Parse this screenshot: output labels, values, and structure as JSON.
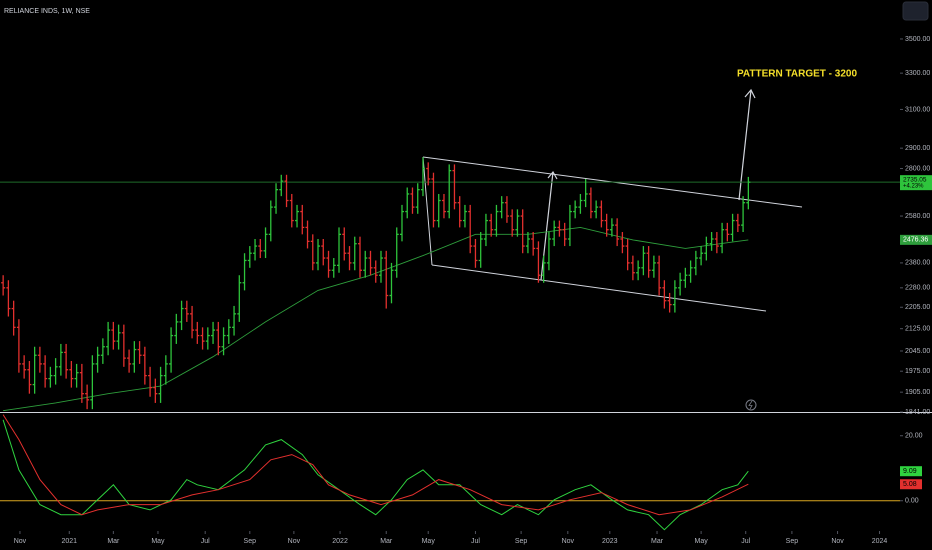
{
  "chart_data": {
    "type": "ohlc",
    "title": "RELIANCE INDS, 1W, NSE",
    "log_scale": true,
    "xlim": [
      -0.6,
      170.9
    ],
    "xticks": [
      {
        "value": 3.2,
        "label": "Nov"
      },
      {
        "value": 12.6,
        "label": "2021"
      },
      {
        "value": 21,
        "label": "Mar"
      },
      {
        "value": 29.5,
        "label": "May"
      },
      {
        "value": 38.5,
        "label": "Jul"
      },
      {
        "value": 47,
        "label": "Sep"
      },
      {
        "value": 55.4,
        "label": "Nov"
      },
      {
        "value": 64.2,
        "label": "2022"
      },
      {
        "value": 73,
        "label": "Mar"
      },
      {
        "value": 81,
        "label": "May"
      },
      {
        "value": 90,
        "label": "Jul"
      },
      {
        "value": 98.7,
        "label": "Sep"
      },
      {
        "value": 107.6,
        "label": "Nov"
      },
      {
        "value": 115.6,
        "label": "2023"
      },
      {
        "value": 124.6,
        "label": "Mar"
      },
      {
        "value": 133,
        "label": "May"
      },
      {
        "value": 141.5,
        "label": "Jul"
      },
      {
        "value": 150.3,
        "label": "Sep"
      },
      {
        "value": 159,
        "label": "Nov"
      },
      {
        "value": 167,
        "label": "2024"
      }
    ],
    "ylim": [
      1841,
      3743
    ],
    "yticks": [
      {
        "value": 3500,
        "label": "3500.00"
      },
      {
        "value": 3300,
        "label": "3300.00"
      },
      {
        "value": 3100,
        "label": "3100.00"
      },
      {
        "value": 2900,
        "label": "2900.00"
      },
      {
        "value": 2800,
        "label": "2800.00"
      },
      {
        "value": 2580,
        "label": "2580.00"
      },
      {
        "value": 2380,
        "label": "2380.00"
      },
      {
        "value": 2280,
        "label": "2280.00"
      },
      {
        "value": 2205,
        "label": "2205.00"
      },
      {
        "value": 2125,
        "label": "2125.00"
      },
      {
        "value": 2045,
        "label": "2045.00"
      },
      {
        "value": 1975,
        "label": "1975.00"
      },
      {
        "value": 1905,
        "label": "1905.00"
      },
      {
        "value": 1841,
        "label": "1841.00"
      }
    ],
    "up_color": "#2ec43c",
    "down_color": "#e3302e",
    "ohlc": [
      [
        2300,
        2330,
        2250,
        2280
      ],
      [
        2280,
        2310,
        2170,
        2200
      ],
      [
        2200,
        2230,
        2100,
        2130
      ],
      [
        2130,
        2160,
        1970,
        2000
      ],
      [
        2000,
        2030,
        1950,
        1980
      ],
      [
        1980,
        2010,
        1900,
        1930
      ],
      [
        1930,
        2060,
        1900,
        2030
      ],
      [
        2030,
        2060,
        1970,
        2000
      ],
      [
        2000,
        2030,
        1920,
        1950
      ],
      [
        1950,
        1990,
        1920,
        1960
      ],
      [
        1960,
        2020,
        1930,
        1990
      ],
      [
        1990,
        2070,
        1960,
        2040
      ],
      [
        2040,
        2070,
        1950,
        1980
      ],
      [
        1980,
        2010,
        1920,
        1950
      ],
      [
        1950,
        2000,
        1920,
        1970
      ],
      [
        1970,
        2000,
        1870,
        1900
      ],
      [
        1900,
        1930,
        1850,
        1880
      ],
      [
        1880,
        2030,
        1850,
        2000
      ],
      [
        2000,
        2060,
        1970,
        2030
      ],
      [
        2030,
        2090,
        2000,
        2060
      ],
      [
        2060,
        2150,
        2030,
        2120
      ],
      [
        2120,
        2150,
        2050,
        2080
      ],
      [
        2080,
        2140,
        2050,
        2110
      ],
      [
        2110,
        2140,
        1990,
        2020
      ],
      [
        2020,
        2050,
        1970,
        2000
      ],
      [
        2000,
        2080,
        1970,
        2050
      ],
      [
        2050,
        2080,
        2000,
        2030
      ],
      [
        2030,
        2060,
        1930,
        1960
      ],
      [
        1960,
        1990,
        1890,
        1920
      ],
      [
        1920,
        1950,
        1870,
        1900
      ],
      [
        1900,
        1990,
        1870,
        1960
      ],
      [
        1960,
        2030,
        1930,
        2000
      ],
      [
        2000,
        2130,
        1970,
        2100
      ],
      [
        2100,
        2180,
        2070,
        2150
      ],
      [
        2150,
        2230,
        2120,
        2200
      ],
      [
        2200,
        2230,
        2150,
        2180
      ],
      [
        2180,
        2210,
        2090,
        2120
      ],
      [
        2120,
        2150,
        2070,
        2100
      ],
      [
        2100,
        2130,
        2050,
        2080
      ],
      [
        2080,
        2130,
        2050,
        2100
      ],
      [
        2100,
        2150,
        2070,
        2120
      ],
      [
        2120,
        2150,
        2030,
        2060
      ],
      [
        2060,
        2130,
        2030,
        2100
      ],
      [
        2100,
        2160,
        2070,
        2130
      ],
      [
        2130,
        2210,
        2100,
        2180
      ],
      [
        2180,
        2330,
        2150,
        2300
      ],
      [
        2300,
        2420,
        2270,
        2390
      ],
      [
        2390,
        2450,
        2360,
        2420
      ],
      [
        2420,
        2480,
        2390,
        2450
      ],
      [
        2450,
        2480,
        2400,
        2430
      ],
      [
        2430,
        2530,
        2400,
        2500
      ],
      [
        2500,
        2650,
        2470,
        2620
      ],
      [
        2620,
        2730,
        2590,
        2700
      ],
      [
        2700,
        2770,
        2670,
        2740
      ],
      [
        2740,
        2770,
        2620,
        2650
      ],
      [
        2650,
        2680,
        2530,
        2560
      ],
      [
        2560,
        2630,
        2530,
        2600
      ],
      [
        2600,
        2630,
        2500,
        2530
      ],
      [
        2530,
        2560,
        2440,
        2470
      ],
      [
        2470,
        2500,
        2350,
        2380
      ],
      [
        2380,
        2480,
        2350,
        2450
      ],
      [
        2450,
        2480,
        2370,
        2400
      ],
      [
        2400,
        2430,
        2320,
        2350
      ],
      [
        2350,
        2400,
        2320,
        2370
      ],
      [
        2370,
        2530,
        2340,
        2500
      ],
      [
        2500,
        2530,
        2390,
        2420
      ],
      [
        2420,
        2450,
        2350,
        2380
      ],
      [
        2380,
        2490,
        2350,
        2460
      ],
      [
        2460,
        2490,
        2320,
        2350
      ],
      [
        2350,
        2430,
        2320,
        2400
      ],
      [
        2400,
        2430,
        2330,
        2360
      ],
      [
        2360,
        2390,
        2300,
        2330
      ],
      [
        2330,
        2430,
        2300,
        2400
      ],
      [
        2400,
        2430,
        2200,
        2250
      ],
      [
        2250,
        2380,
        2220,
        2350
      ],
      [
        2350,
        2530,
        2320,
        2500
      ],
      [
        2500,
        2630,
        2470,
        2600
      ],
      [
        2600,
        2710,
        2570,
        2680
      ],
      [
        2680,
        2710,
        2590,
        2620
      ],
      [
        2620,
        2730,
        2590,
        2700
      ],
      [
        2700,
        2855,
        2670,
        2800
      ],
      [
        2800,
        2830,
        2720,
        2750
      ],
      [
        2750,
        2780,
        2530,
        2560
      ],
      [
        2560,
        2680,
        2530,
        2650
      ],
      [
        2650,
        2680,
        2570,
        2600
      ],
      [
        2600,
        2820,
        2570,
        2790
      ],
      [
        2790,
        2820,
        2610,
        2640
      ],
      [
        2640,
        2670,
        2530,
        2560
      ],
      [
        2560,
        2630,
        2530,
        2600
      ],
      [
        2600,
        2630,
        2420,
        2450
      ],
      [
        2450,
        2480,
        2360,
        2390
      ],
      [
        2390,
        2510,
        2360,
        2480
      ],
      [
        2480,
        2590,
        2450,
        2560
      ],
      [
        2560,
        2590,
        2490,
        2520
      ],
      [
        2520,
        2630,
        2490,
        2600
      ],
      [
        2600,
        2670,
        2570,
        2640
      ],
      [
        2640,
        2670,
        2550,
        2580
      ],
      [
        2580,
        2610,
        2490,
        2520
      ],
      [
        2520,
        2610,
        2490,
        2580
      ],
      [
        2580,
        2610,
        2420,
        2450
      ],
      [
        2450,
        2510,
        2420,
        2480
      ],
      [
        2480,
        2510,
        2410,
        2440
      ],
      [
        2440,
        2470,
        2300,
        2330
      ],
      [
        2330,
        2410,
        2300,
        2380
      ],
      [
        2380,
        2510,
        2350,
        2480
      ],
      [
        2480,
        2560,
        2450,
        2530
      ],
      [
        2530,
        2560,
        2490,
        2520
      ],
      [
        2520,
        2550,
        2450,
        2480
      ],
      [
        2480,
        2630,
        2450,
        2600
      ],
      [
        2600,
        2650,
        2570,
        2620
      ],
      [
        2620,
        2680,
        2590,
        2650
      ],
      [
        2650,
        2750,
        2620,
        2680
      ],
      [
        2680,
        2710,
        2570,
        2600
      ],
      [
        2600,
        2650,
        2570,
        2620
      ],
      [
        2620,
        2650,
        2530,
        2560
      ],
      [
        2560,
        2590,
        2490,
        2520
      ],
      [
        2520,
        2570,
        2490,
        2540
      ],
      [
        2540,
        2570,
        2450,
        2480
      ],
      [
        2480,
        2510,
        2420,
        2450
      ],
      [
        2450,
        2480,
        2350,
        2380
      ],
      [
        2380,
        2410,
        2310,
        2340
      ],
      [
        2340,
        2390,
        2310,
        2360
      ],
      [
        2360,
        2450,
        2330,
        2420
      ],
      [
        2420,
        2450,
        2320,
        2350
      ],
      [
        2350,
        2410,
        2320,
        2380
      ],
      [
        2380,
        2410,
        2250,
        2280
      ],
      [
        2280,
        2310,
        2200,
        2230
      ],
      [
        2230,
        2260,
        2185,
        2215
      ],
      [
        2215,
        2310,
        2185,
        2280
      ],
      [
        2280,
        2340,
        2250,
        2310
      ],
      [
        2310,
        2360,
        2280,
        2330
      ],
      [
        2330,
        2390,
        2300,
        2360
      ],
      [
        2360,
        2430,
        2330,
        2400
      ],
      [
        2400,
        2450,
        2370,
        2420
      ],
      [
        2420,
        2490,
        2390,
        2460
      ],
      [
        2460,
        2510,
        2430,
        2480
      ],
      [
        2480,
        2510,
        2420,
        2450
      ],
      [
        2450,
        2550,
        2420,
        2520
      ],
      [
        2520,
        2550,
        2470,
        2500
      ],
      [
        2500,
        2590,
        2470,
        2560
      ],
      [
        2560,
        2590,
        2510,
        2540
      ],
      [
        2540,
        2670,
        2510,
        2640
      ],
      [
        2640,
        2760,
        2610,
        2735.05
      ]
    ],
    "moving_average": {
      "color": "#2e9e3c",
      "x": [
        0,
        10,
        20,
        30,
        40,
        50,
        60,
        70,
        80,
        90,
        100,
        110,
        120,
        130,
        140,
        142
      ],
      "values": [
        1845,
        1870,
        1900,
        1925,
        2025,
        2150,
        2270,
        2330,
        2410,
        2500,
        2500,
        2530,
        2476,
        2440,
        2470,
        2476.36
      ]
    },
    "last_change": "+4.23%",
    "annotation": "PATTERN TARGET - 3200",
    "oscillator": {
      "ylim": [
        -9,
        27
      ],
      "yticks": [
        {
          "value": 20,
          "label": "20.00"
        },
        {
          "value": 0,
          "label": "0.00"
        }
      ],
      "level": 0,
      "level_color": "#d9a520",
      "series": [
        {
          "color": "#2fd33f",
          "x": [
            0,
            3,
            7,
            11,
            15,
            18,
            21,
            24,
            28,
            32,
            35,
            37,
            41,
            46,
            50,
            53,
            57,
            60,
            64,
            68,
            71,
            74,
            77,
            80,
            83,
            87,
            91,
            95,
            98,
            102,
            105,
            109,
            112,
            116,
            119,
            123,
            126,
            129,
            133,
            137,
            140,
            142
          ],
          "values": [
            24.9,
            9.5,
            -1.2,
            -4.3,
            -4.3,
            0.3,
            4.9,
            -1.2,
            -2.8,
            0.3,
            6.5,
            4.9,
            3.4,
            9.5,
            17.2,
            18.8,
            14.2,
            8,
            3.4,
            -1.2,
            -4.3,
            0.3,
            6.5,
            9.5,
            4.9,
            4.9,
            -1.2,
            -4.3,
            -1.2,
            -4.3,
            0.3,
            3.4,
            4.9,
            0.3,
            -2.8,
            -4.3,
            -8.9,
            -4.3,
            -1.2,
            3.4,
            4.9,
            9.09
          ]
        },
        {
          "color": "#e3302e",
          "x": [
            0,
            3,
            7,
            11,
            15,
            18,
            24,
            30,
            36,
            41,
            47,
            51,
            55,
            59,
            62,
            66,
            72,
            78,
            83,
            89,
            95,
            102,
            108,
            114,
            119,
            125,
            131,
            137,
            142
          ],
          "values": [
            26.5,
            18.8,
            6.5,
            -1.2,
            -4.3,
            -2.8,
            -1.2,
            -1.2,
            1.8,
            3.4,
            6.5,
            12.6,
            14.2,
            11.1,
            4.9,
            1.8,
            -1.2,
            1.8,
            6.5,
            3.4,
            -1.2,
            -2.8,
            0.3,
            2.5,
            -1.2,
            -4.3,
            -2.8,
            1.2,
            5.08
          ]
        }
      ]
    }
  }
}
